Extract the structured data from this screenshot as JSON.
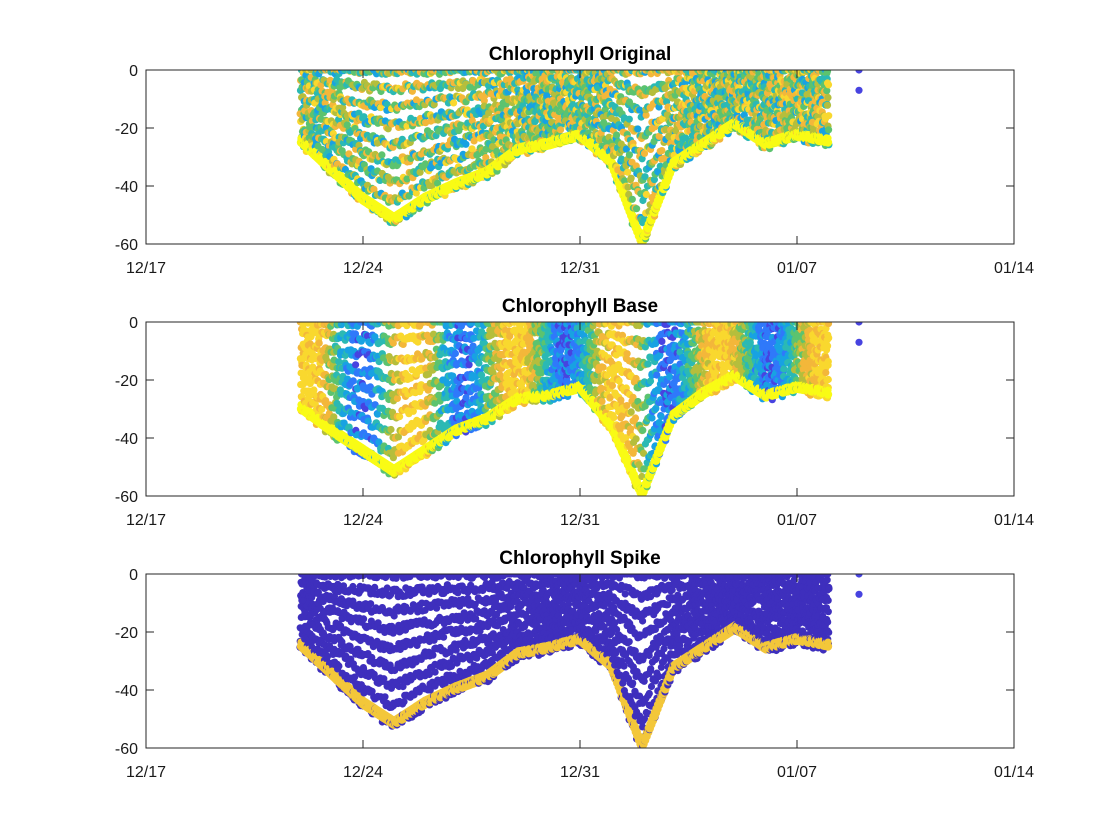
{
  "colors": {
    "axis": "#262626",
    "text": "#000000",
    "colormap": [
      "#3e26a8",
      "#4743e0",
      "#2f79fa",
      "#18a2e2",
      "#2bb9b4",
      "#5cc36f",
      "#b5be3c",
      "#f3b73a",
      "#f9d82e",
      "#f9fb15"
    ]
  },
  "chart_data": [
    {
      "type": "scatter",
      "title": "Chlorophyll Original",
      "xlabel": "",
      "ylabel": "",
      "x_axis_type": "date",
      "xlim": [
        "2023-12-17",
        "2024-01-14"
      ],
      "ylim": [
        -60,
        0
      ],
      "x_ticks": [
        "12/17",
        "12/24",
        "12/31",
        "01/07",
        "01/14"
      ],
      "y_ticks": [
        "0",
        "-20",
        "-40",
        "-60"
      ],
      "colormap": "parula",
      "data_start": "2023-12-22",
      "data_end": "2024-01-08",
      "isolated_points": [
        {
          "date": "2024-01-09",
          "depth": 0,
          "color": "#4743e0"
        },
        {
          "date": "2024-01-09",
          "depth": -7,
          "color": "#4743e0"
        }
      ],
      "bottom_depth_profile": [
        {
          "date": "2023-12-22",
          "depth": -25
        },
        {
          "date": "2023-12-23",
          "depth": -35
        },
        {
          "date": "2023-12-24",
          "depth": -45
        },
        {
          "date": "2023-12-25",
          "depth": -52
        },
        {
          "date": "2023-12-26",
          "depth": -45
        },
        {
          "date": "2023-12-27",
          "depth": -40
        },
        {
          "date": "2023-12-28",
          "depth": -36
        },
        {
          "date": "2023-12-29",
          "depth": -28
        },
        {
          "date": "2023-12-30",
          "depth": -26
        },
        {
          "date": "2023-12-31",
          "depth": -23
        },
        {
          "date": "2024-01-01",
          "depth": -32
        },
        {
          "date": "2024-01-02",
          "depth": -60
        },
        {
          "date": "2024-01-03",
          "depth": -33
        },
        {
          "date": "2024-01-04",
          "depth": -26
        },
        {
          "date": "2024-01-05",
          "depth": -19
        },
        {
          "date": "2024-01-06",
          "depth": -26
        },
        {
          "date": "2024-01-07",
          "depth": -23
        },
        {
          "date": "2024-01-08",
          "depth": -25
        }
      ]
    },
    {
      "type": "scatter",
      "title": "Chlorophyll Base",
      "xlabel": "",
      "ylabel": "",
      "x_axis_type": "date",
      "xlim": [
        "2023-12-17",
        "2024-01-14"
      ],
      "ylim": [
        -60,
        0
      ],
      "x_ticks": [
        "12/17",
        "12/24",
        "12/31",
        "01/07",
        "01/14"
      ],
      "y_ticks": [
        "0",
        "-20",
        "-40",
        "-60"
      ],
      "colormap": "parula",
      "data_start": "2023-12-22",
      "data_end": "2024-01-08",
      "isolated_points": [
        {
          "date": "2024-01-09",
          "depth": 0,
          "color": "#4743e0"
        },
        {
          "date": "2024-01-09",
          "depth": -7,
          "color": "#4743e0"
        }
      ],
      "bottom_depth_profile": [
        {
          "date": "2023-12-22",
          "depth": -30
        },
        {
          "date": "2023-12-23",
          "depth": -38
        },
        {
          "date": "2023-12-24",
          "depth": -45
        },
        {
          "date": "2023-12-25",
          "depth": -52
        },
        {
          "date": "2023-12-26",
          "depth": -45
        },
        {
          "date": "2023-12-27",
          "depth": -38
        },
        {
          "date": "2023-12-28",
          "depth": -34
        },
        {
          "date": "2023-12-29",
          "depth": -27
        },
        {
          "date": "2023-12-30",
          "depth": -26
        },
        {
          "date": "2023-12-31",
          "depth": -23
        },
        {
          "date": "2024-01-01",
          "depth": -36
        },
        {
          "date": "2024-01-02",
          "depth": -60
        },
        {
          "date": "2024-01-03",
          "depth": -33
        },
        {
          "date": "2024-01-04",
          "depth": -25
        },
        {
          "date": "2024-01-05",
          "depth": -19
        },
        {
          "date": "2024-01-06",
          "depth": -26
        },
        {
          "date": "2024-01-07",
          "depth": -23
        },
        {
          "date": "2024-01-08",
          "depth": -25
        }
      ]
    },
    {
      "type": "scatter",
      "title": "Chlorophyll Spike",
      "xlabel": "",
      "ylabel": "",
      "x_axis_type": "date",
      "xlim": [
        "2023-12-17",
        "2024-01-14"
      ],
      "ylim": [
        -60,
        0
      ],
      "x_ticks": [
        "12/17",
        "12/24",
        "12/31",
        "01/07",
        "01/14"
      ],
      "y_ticks": [
        "0",
        "-20",
        "-40",
        "-60"
      ],
      "colormap": "parula",
      "fill_color": "#3e2fbd",
      "edge_color": "#f3c73a",
      "data_start": "2023-12-22",
      "data_end": "2024-01-08",
      "isolated_points": [
        {
          "date": "2024-01-09",
          "depth": 0,
          "color": "#4743e0"
        },
        {
          "date": "2024-01-09",
          "depth": -7,
          "color": "#4743e0"
        }
      ],
      "bottom_depth_profile": [
        {
          "date": "2023-12-22",
          "depth": -25
        },
        {
          "date": "2023-12-23",
          "depth": -35
        },
        {
          "date": "2023-12-24",
          "depth": -45
        },
        {
          "date": "2023-12-25",
          "depth": -52
        },
        {
          "date": "2023-12-26",
          "depth": -45
        },
        {
          "date": "2023-12-27",
          "depth": -40
        },
        {
          "date": "2023-12-28",
          "depth": -36
        },
        {
          "date": "2023-12-29",
          "depth": -28
        },
        {
          "date": "2023-12-30",
          "depth": -26
        },
        {
          "date": "2023-12-31",
          "depth": -23
        },
        {
          "date": "2024-01-01",
          "depth": -32
        },
        {
          "date": "2024-01-02",
          "depth": -60
        },
        {
          "date": "2024-01-03",
          "depth": -33
        },
        {
          "date": "2024-01-04",
          "depth": -26
        },
        {
          "date": "2024-01-05",
          "depth": -19
        },
        {
          "date": "2024-01-06",
          "depth": -26
        },
        {
          "date": "2024-01-07",
          "depth": -23
        },
        {
          "date": "2024-01-08",
          "depth": -25
        }
      ]
    }
  ]
}
